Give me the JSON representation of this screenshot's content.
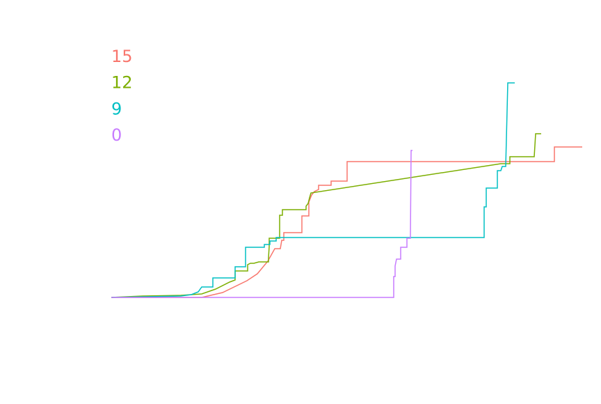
{
  "chart_data": {
    "type": "line",
    "xlim": [
      0,
      680
    ],
    "ylim": [
      0,
      320
    ],
    "series": [
      {
        "name": "15",
        "color": "#f8766d",
        "x": [
          0,
          130,
          160,
          195,
          210,
          225,
          235,
          243,
          245,
          248,
          248,
          274,
          274,
          284,
          284,
          288,
          292,
          298,
          298,
          316,
          316,
          339,
          339,
          637,
          637,
          677
        ],
        "values": [
          0,
          0,
          7,
          24,
          34,
          52,
          70,
          70,
          82,
          82,
          93,
          93,
          117,
          117,
          137,
          147,
          152,
          155,
          161,
          161,
          167,
          167,
          195,
          195,
          216,
          216
        ]
      },
      {
        "name": "12",
        "color": "#7cae00",
        "x": [
          0,
          45,
          100,
          130,
          150,
          170,
          178,
          178,
          196,
          196,
          200,
          205,
          212,
          226,
          226,
          227,
          227,
          242,
          242,
          246,
          246,
          280,
          280,
          283,
          285,
          287,
          560,
          573,
          573,
          608,
          610,
          618
        ],
        "values": [
          0,
          2,
          3,
          5,
          12,
          22,
          25,
          38,
          38,
          47,
          49,
          49,
          51,
          51,
          57,
          73,
          85,
          85,
          118,
          118,
          126,
          126,
          131,
          135,
          143,
          150,
          192,
          192,
          202,
          202,
          235,
          235
        ]
      },
      {
        "name": "9",
        "color": "#00bfc4",
        "x": [
          0,
          100,
          115,
          125,
          130,
          146,
          146,
          178,
          178,
          193,
          193,
          220,
          220,
          228,
          228,
          237,
          237,
          536,
          536,
          539,
          539,
          555,
          555,
          560,
          562,
          567,
          570,
          580
        ],
        "values": [
          0,
          2,
          4,
          8,
          15,
          15,
          28,
          28,
          44,
          44,
          72,
          72,
          76,
          76,
          81,
          81,
          86,
          86,
          130,
          130,
          157,
          157,
          182,
          182,
          188,
          188,
          308,
          308
        ]
      },
      {
        "name": "0",
        "color": "#c77cff",
        "x": [
          0,
          406,
          406,
          408,
          408,
          410,
          416,
          416,
          425,
          425,
          430,
          431,
          433
        ],
        "values": [
          0,
          0,
          30,
          30,
          45,
          55,
          55,
          72,
          72,
          85,
          85,
          211,
          211
        ]
      }
    ]
  }
}
